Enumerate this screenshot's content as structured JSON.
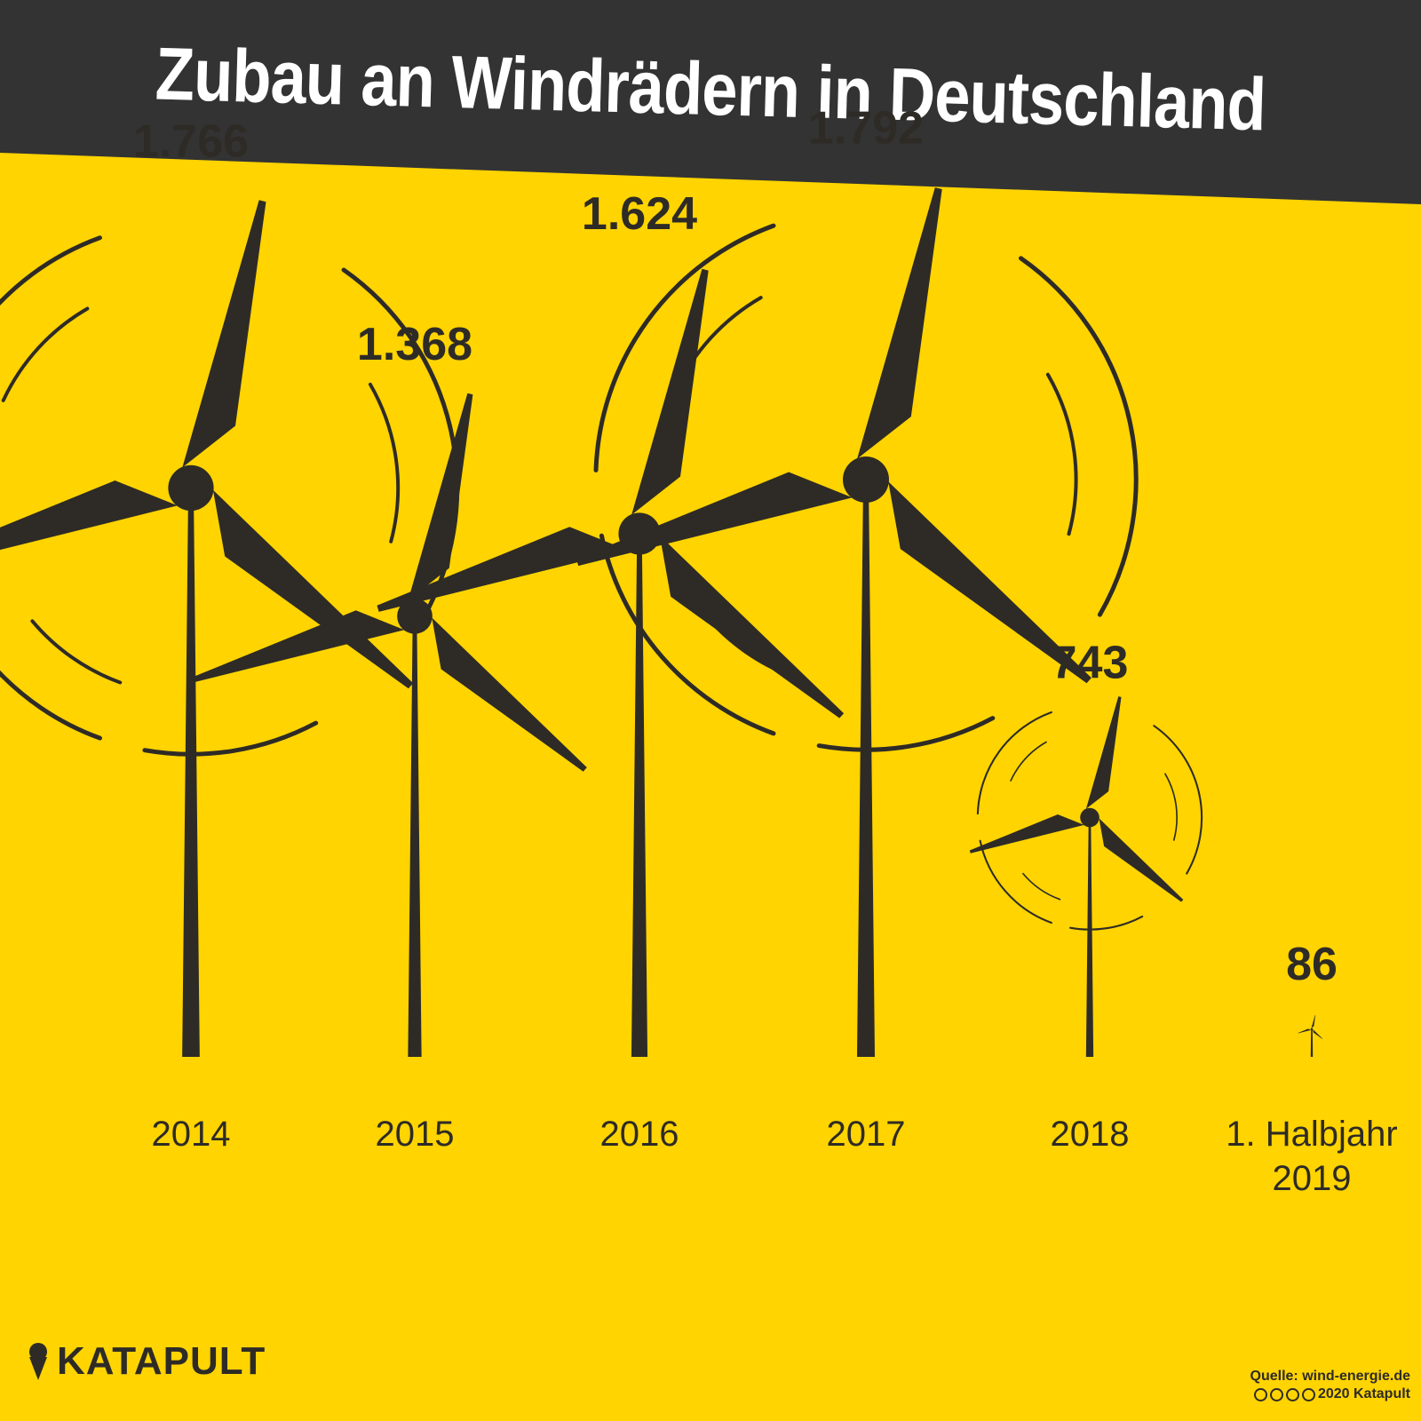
{
  "title": "Zubau an Windrädern in Deutschland",
  "colors": {
    "background": "#FFD400",
    "header": "#333333",
    "title_text": "#FFFFFF",
    "ink": "#2E2B26"
  },
  "chart_data": {
    "type": "bar",
    "title": "Zubau an Windrädern in Deutschland",
    "categories": [
      "2014",
      "2015",
      "2016",
      "2017",
      "2018",
      "1. Halbjahr 2019"
    ],
    "values": [
      1766,
      1368,
      1624,
      1792,
      743,
      86
    ],
    "value_labels": [
      "1.766",
      "1.368",
      "1.624",
      "1.792",
      "743",
      "86"
    ],
    "category_labels": [
      [
        "2014"
      ],
      [
        "2015"
      ],
      [
        "2016"
      ],
      [
        "2017"
      ],
      [
        "2018"
      ],
      [
        "1. Halbjahr",
        "2019"
      ]
    ],
    "motion_arcs": [
      true,
      false,
      false,
      true,
      true,
      false
    ],
    "mark": "wind-turbine-icon",
    "xlabel": "",
    "ylabel": "",
    "grid": false
  },
  "footer": {
    "brand": "KATAPULT",
    "brand_icon": "ice-cream-cone-icon",
    "source": "Quelle: wind-energie.de",
    "copyright": "2020 Katapult",
    "license_icons": [
      "cc-icon",
      "by-icon",
      "nc-icon",
      "nd-icon"
    ]
  }
}
